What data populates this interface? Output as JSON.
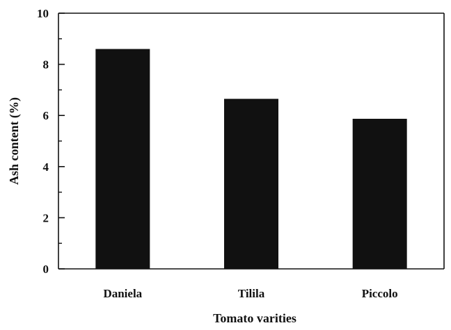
{
  "chart_data": {
    "type": "bar",
    "title": "",
    "xlabel": "Tomato varities",
    "ylabel": "Ash content (%)",
    "categories": [
      "Daniela",
      "Tilila",
      "Piccolo"
    ],
    "values": [
      8.6,
      6.65,
      5.87
    ],
    "ylim": [
      0,
      10
    ],
    "yticks": [
      "0",
      "2",
      "4",
      "6",
      "8",
      "10"
    ],
    "grid": false,
    "legend": "none",
    "bar_color": "#111111"
  }
}
